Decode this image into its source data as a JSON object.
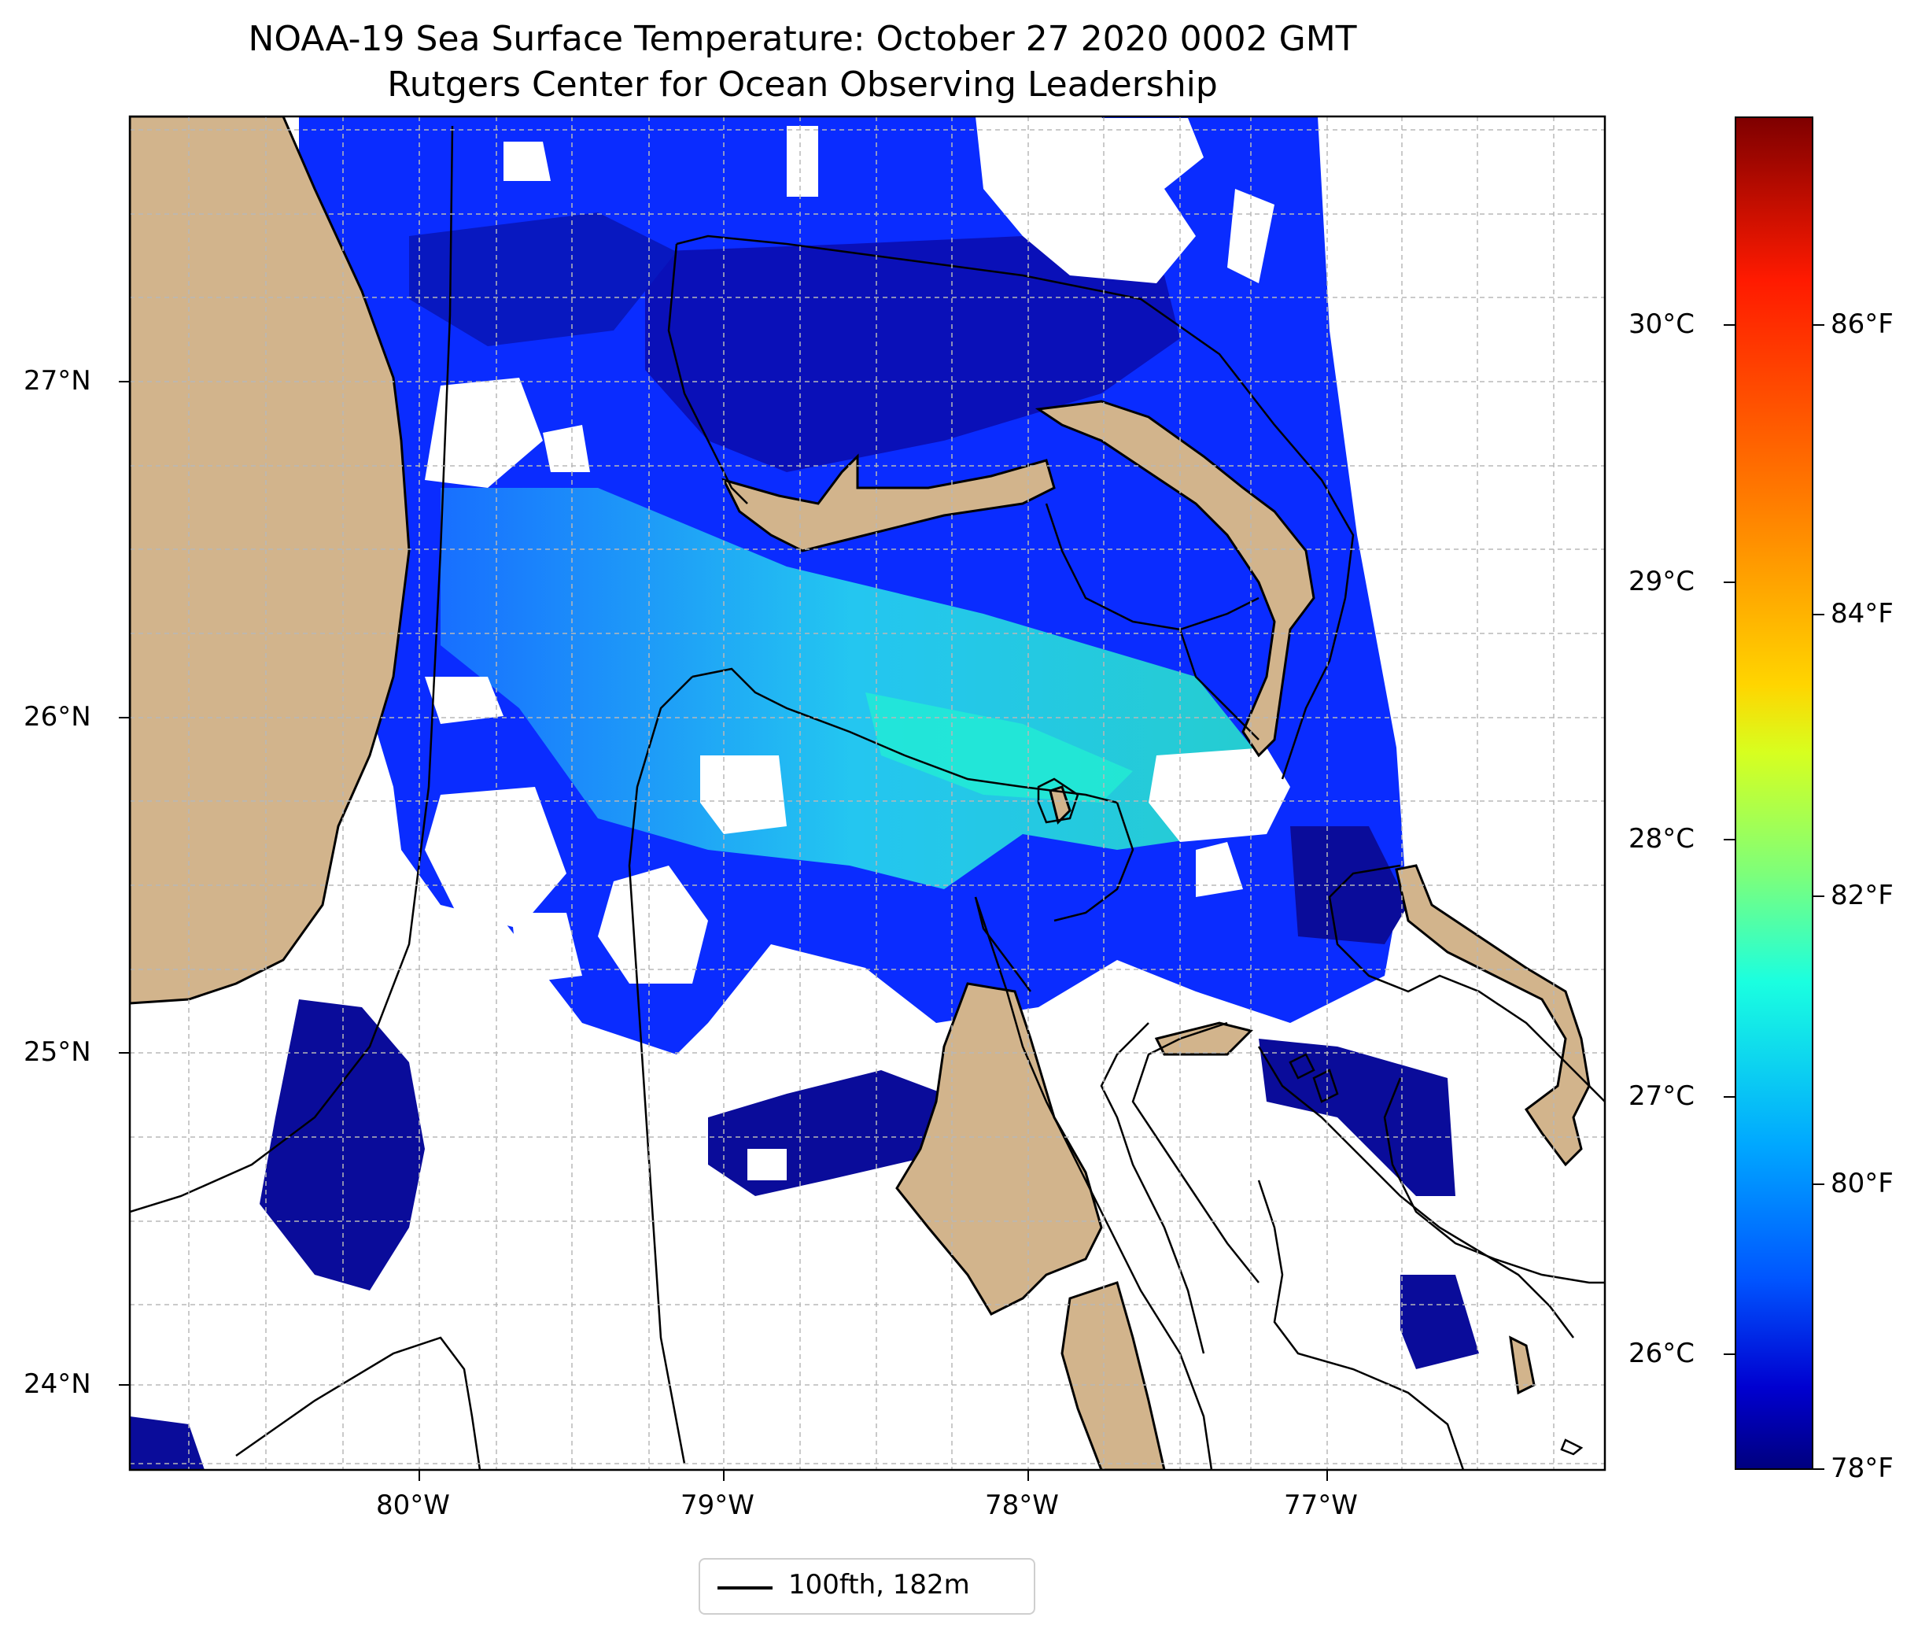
{
  "title": {
    "line1": "NOAA-19 Sea Surface Temperature: October 27 2020 0002 GMT",
    "line2": "Rutgers Center for Ocean Observing Leadership"
  },
  "map": {
    "lon_labels": [
      "80°W",
      "79°W",
      "78°W",
      "77°W"
    ],
    "lat_labels": [
      "27°N",
      "26°N",
      "25°N",
      "24°N"
    ],
    "land_color": "#d2b48c",
    "grid": true
  },
  "colorbar": {
    "celsius_labels": [
      "30°C",
      "29°C",
      "28°C",
      "27°C",
      "26°C"
    ],
    "fahrenheit_labels": [
      "86°F",
      "84°F",
      "82°F",
      "80°F",
      "78°F"
    ],
    "colormap": "jet"
  },
  "legend": {
    "label": "100fth, 182m"
  }
}
